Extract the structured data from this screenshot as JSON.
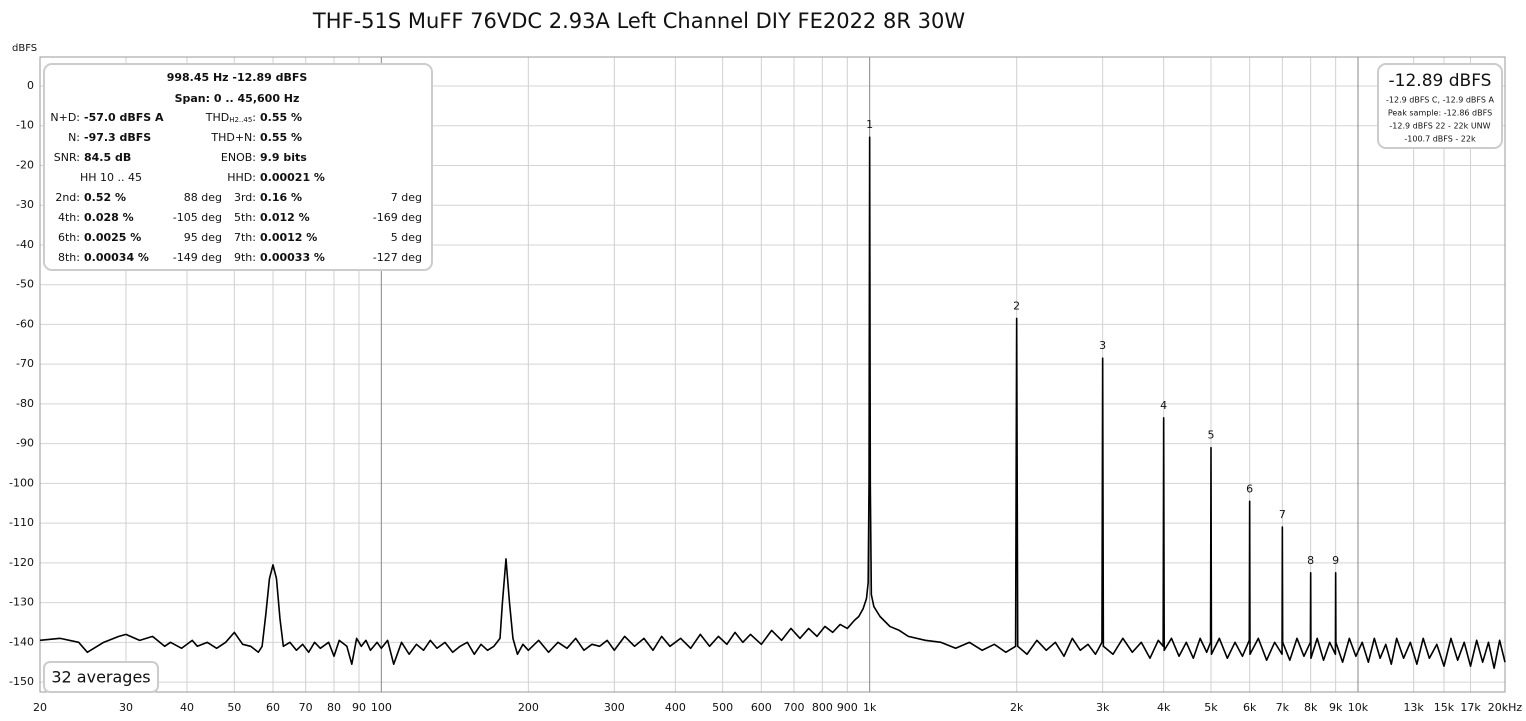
{
  "chart_data": {
    "type": "line",
    "title": "THF-51S MuFF 76VDC 2.93A Left Channel DIY FE2022 8R 30W",
    "y_label": "dBFS",
    "log_x": true,
    "grid": true,
    "color": "#000000",
    "xlim": [
      20,
      20000
    ],
    "ylim": [
      -152.5,
      7.3
    ],
    "xticks": [
      20,
      30,
      40,
      50,
      60,
      70,
      80,
      90,
      100,
      200,
      300,
      400,
      500,
      600,
      700,
      800,
      900,
      {
        "value": 1000,
        "label": "1k"
      },
      {
        "value": 2000,
        "label": "2k"
      },
      {
        "value": 3000,
        "label": "3k"
      },
      {
        "value": 4000,
        "label": "4k"
      },
      {
        "value": 5000,
        "label": "5k"
      },
      {
        "value": 6000,
        "label": "6k"
      },
      {
        "value": 7000,
        "label": "7k"
      },
      {
        "value": 8000,
        "label": "8k"
      },
      {
        "value": 9000,
        "label": "9k"
      },
      {
        "value": 10000,
        "label": "10k"
      },
      {
        "value": 13000,
        "label": "13k"
      },
      {
        "value": 15000,
        "label": "15k"
      },
      {
        "value": 17000,
        "label": "17k"
      },
      {
        "value": 20000,
        "label": "20kHz"
      }
    ],
    "yticks": [
      0,
      -10,
      -20,
      -30,
      -40,
      -50,
      -60,
      -70,
      -80,
      -90,
      -100,
      -110,
      -120,
      -130,
      -140,
      -150
    ],
    "x": [
      20,
      22,
      24,
      25,
      27,
      29,
      30,
      32,
      34,
      36,
      37,
      39,
      41,
      42,
      44,
      46,
      48,
      50,
      52,
      54,
      56,
      57,
      58,
      59,
      60,
      61,
      62,
      63,
      65,
      67,
      69,
      71,
      73,
      75,
      78,
      80,
      82,
      85,
      87,
      89,
      91,
      93,
      95,
      98,
      100,
      103,
      106,
      110,
      114,
      118,
      122,
      126,
      130,
      135,
      140,
      145,
      150,
      155,
      160,
      165,
      170,
      175,
      177,
      180,
      183,
      186,
      190,
      195,
      200,
      210,
      220,
      230,
      240,
      250,
      260,
      270,
      280,
      290,
      300,
      315,
      330,
      345,
      360,
      375,
      390,
      410,
      430,
      450,
      470,
      490,
      510,
      530,
      550,
      570,
      600,
      630,
      660,
      690,
      720,
      750,
      780,
      810,
      840,
      870,
      900,
      930,
      950,
      970,
      985,
      993,
      997,
      1000,
      1003,
      1008,
      1020,
      1050,
      1100,
      1150,
      1200,
      1300,
      1400,
      1500,
      1600,
      1700,
      1800,
      1900,
      1990,
      2000,
      2010,
      2100,
      2200,
      2300,
      2400,
      2500,
      2600,
      2700,
      2800,
      2900,
      2990,
      3000,
      3010,
      3150,
      3300,
      3450,
      3600,
      3750,
      3900,
      3990,
      4000,
      4010,
      4150,
      4300,
      4450,
      4600,
      4750,
      4900,
      4990,
      5000,
      5010,
      5200,
      5400,
      5600,
      5800,
      5990,
      6000,
      6010,
      6250,
      6500,
      6750,
      6990,
      7000,
      7010,
      7250,
      7500,
      7750,
      7990,
      8000,
      8010,
      8250,
      8500,
      8750,
      8990,
      9000,
      9010,
      9300,
      9600,
      9900,
      10200,
      10500,
      10800,
      11100,
      11400,
      11700,
      12000,
      12400,
      12800,
      13200,
      13600,
      14000,
      14500,
      15000,
      15500,
      16000,
      16500,
      17000,
      17500,
      18000,
      18500,
      19000,
      19500,
      20000
    ],
    "values": [
      -139.5,
      -139,
      -140,
      -142.5,
      -140,
      -138.5,
      -138,
      -139.5,
      -138.5,
      -141,
      -140,
      -141.5,
      -139.5,
      -141,
      -140,
      -141.5,
      -140,
      -137.5,
      -140.5,
      -141,
      -142.5,
      -141,
      -133,
      -124,
      -120.5,
      -124,
      -134,
      -141,
      -140,
      -142,
      -140.5,
      -142.5,
      -140,
      -141.5,
      -140,
      -143.5,
      -139.5,
      -141,
      -145.5,
      -139,
      -141,
      -139.5,
      -142,
      -140,
      -141.5,
      -139.5,
      -145.5,
      -140,
      -143,
      -140.5,
      -142,
      -139.5,
      -141.5,
      -140,
      -142.5,
      -141,
      -140,
      -143,
      -140.5,
      -142,
      -141,
      -139,
      -130,
      -119,
      -130,
      -139,
      -143,
      -140.5,
      -142,
      -139.5,
      -142.5,
      -140,
      -141.5,
      -139,
      -142,
      -140.5,
      -141,
      -139.5,
      -142,
      -138.5,
      -141,
      -139,
      -142,
      -138.5,
      -141,
      -139,
      -141.5,
      -138,
      -141,
      -138.5,
      -140.5,
      -137.5,
      -140,
      -138,
      -140.5,
      -137,
      -139.5,
      -136.5,
      -139,
      -136.5,
      -138.5,
      -136,
      -137.5,
      -135.5,
      -136.5,
      -134.5,
      -133.5,
      -131.5,
      -129,
      -125,
      -100,
      -12.89,
      -100,
      -128,
      -131,
      -133.5,
      -136,
      -137,
      -138.5,
      -139.5,
      -140,
      -141.5,
      -140,
      -142,
      -140.5,
      -142.5,
      -141,
      -58.5,
      -141,
      -143,
      -139.5,
      -142,
      -140,
      -143.5,
      -139,
      -142,
      -140.5,
      -143,
      -140,
      -68.5,
      -141,
      -143,
      -139,
      -142.5,
      -140,
      -144,
      -139.5,
      -141,
      -83.5,
      -142,
      -139,
      -143.5,
      -140,
      -144,
      -139,
      -142.5,
      -140,
      -91,
      -143,
      -139,
      -144,
      -140,
      -143.5,
      -139.5,
      -104.5,
      -143,
      -139,
      -144.5,
      -140,
      -143,
      -111,
      -140,
      -144.5,
      -139,
      -143.5,
      -140,
      -122.5,
      -144,
      -139,
      -144.5,
      -140,
      -143,
      -122.5,
      -140,
      -145,
      -139,
      -143.5,
      -140,
      -145,
      -139,
      -144,
      -140.5,
      -145.5,
      -139,
      -144,
      -140,
      -145.5,
      -139,
      -144,
      -140.5,
      -146,
      -139,
      -144.5,
      -140,
      -146,
      -139.5,
      -145,
      -140,
      -146.5,
      -139.5,
      -145
    ],
    "harmonic_markers": {
      "labels": [
        "1",
        "2",
        "3",
        "4",
        "5",
        "6",
        "7",
        "8",
        "9"
      ],
      "x": [
        1000,
        2000,
        3000,
        4000,
        5000,
        6000,
        7000,
        8000,
        9000
      ],
      "values": [
        -12.89,
        -58.5,
        -68.5,
        -83.5,
        -91,
        -104.5,
        -111,
        -122.5,
        -122.5
      ]
    },
    "info_panel": {
      "header": "998.45 Hz  -12.89 dBFS",
      "span": "Span: 0 .. 45,600 Hz",
      "nd_label": "N+D:",
      "nd": "-57.0 dBFS A",
      "thd_label": "THD",
      "thd_sub": "H2..45",
      "thd_colon": ":",
      "thd": "0.55 %",
      "n_label": "N:",
      "n": "-97.3 dBFS",
      "thdn_label": "THD+N:",
      "thdn": "0.55 %",
      "snr_label": "SNR:",
      "snr": "84.5 dB",
      "enob_label": "ENOB:",
      "enob": "9.9 bits",
      "hh_range": "HH 10 .. 45",
      "hhd_label": "HHD:",
      "hhd": "0.00021 %",
      "harmonics": [
        {
          "label": "2nd:",
          "level": "0.52 %",
          "phase": "88 deg"
        },
        {
          "label": "3rd:",
          "level": "0.16 %",
          "phase": "7 deg"
        },
        {
          "label": "4th:",
          "level": "0.028 %",
          "phase": "-105 deg"
        },
        {
          "label": "5th:",
          "level": "0.012 %",
          "phase": "-169 deg"
        },
        {
          "label": "6th:",
          "level": "0.0025 %",
          "phase": "95 deg"
        },
        {
          "label": "7th:",
          "level": "0.0012 %",
          "phase": "5 deg"
        },
        {
          "label": "8th:",
          "level": "0.00034 %",
          "phase": "-149 deg"
        },
        {
          "label": "9th:",
          "level": "0.00033 %",
          "phase": "-127 deg"
        }
      ]
    },
    "level_panel": {
      "level": "-12.89 dBFS",
      "lines": [
        "-12.9 dBFS C, -12.9 dBFS A",
        "Peak sample: -12.86 dBFS",
        "-12.9 dBFS 22 - 22k UNW",
        "-100.7 dBFS - 22k"
      ]
    },
    "averages_label": "32 averages"
  }
}
